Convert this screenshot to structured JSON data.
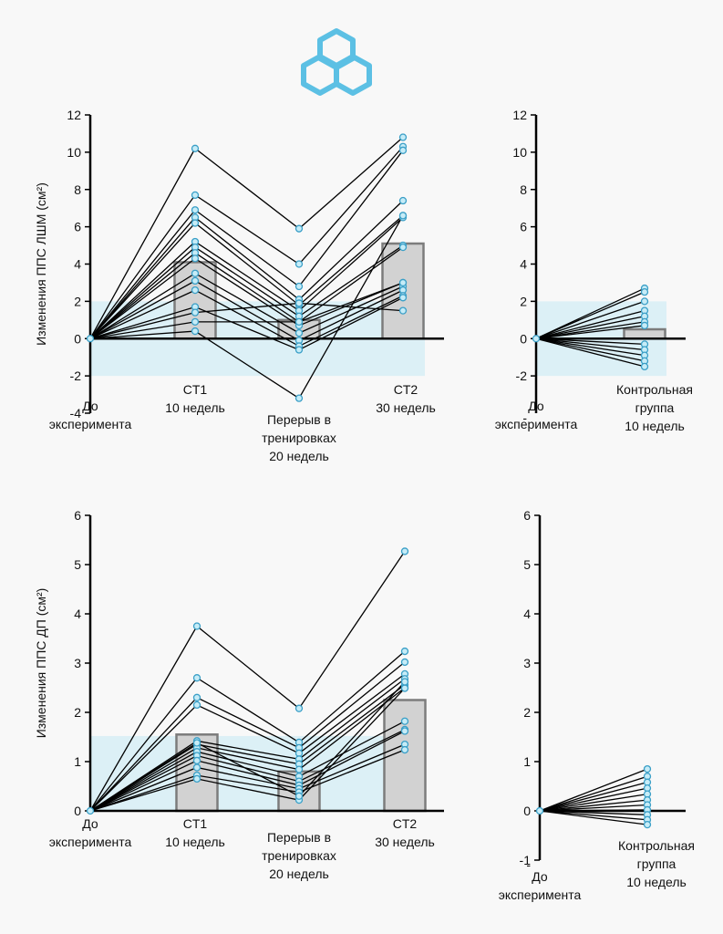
{
  "logo": {
    "name": "hexagon-cubes-logo",
    "color": "#5cc0e4"
  },
  "colors": {
    "band": "#dcf0f6",
    "bar_fill": "#d2d2d2",
    "bar_stroke": "#7c7c7c",
    "point_stroke": "#3a9fc7",
    "point_fill": "#c6ecf7",
    "line": "#000000"
  },
  "chart_data": [
    {
      "id": "lshm-exp",
      "type": "bar",
      "ylabel": "Изменения ППС ЛШМ  (см²)",
      "ylim": [
        -4,
        12
      ],
      "yticks": [
        -4,
        -2,
        0,
        2,
        4,
        6,
        8,
        10,
        12
      ],
      "band": [
        -2,
        2
      ],
      "categories": [
        "До\nэксперимента",
        "CT1\n10 недель",
        "Перерыв в\nтренировках\n20 недель",
        "CT2\n30 недель"
      ],
      "values": [
        0,
        4.1,
        1.0,
        5.1
      ],
      "series": [
        {
          "values": [
            0,
            10.2,
            5.9,
            10.8
          ]
        },
        {
          "values": [
            0,
            7.7,
            4.0,
            10.3
          ]
        },
        {
          "values": [
            0,
            6.9,
            2.8,
            10.1
          ]
        },
        {
          "values": [
            0,
            6.5,
            2.1,
            7.4
          ]
        },
        {
          "values": [
            0,
            6.2,
            1.8,
            6.6
          ]
        },
        {
          "values": [
            0,
            5.2,
            1.5,
            6.5
          ]
        },
        {
          "values": [
            0,
            4.9,
            1.2,
            5.0
          ]
        },
        {
          "values": [
            0,
            4.6,
            0.9,
            4.9
          ]
        },
        {
          "values": [
            0,
            4.3,
            0.7,
            3.0
          ]
        },
        {
          "values": [
            0,
            3.5,
            0.3,
            2.8
          ]
        },
        {
          "values": [
            0,
            3.1,
            -0.1,
            2.6
          ]
        },
        {
          "values": [
            0,
            2.6,
            -0.4,
            2.3
          ]
        },
        {
          "values": [
            0,
            1.7,
            -0.6,
            2.2
          ]
        },
        {
          "values": [
            0,
            1.4,
            1.9,
            1.5
          ]
        },
        {
          "values": [
            0,
            0.9,
            0.9,
            3.0
          ]
        },
        {
          "values": [
            0,
            0.4,
            -3.2,
            6.6
          ]
        }
      ]
    },
    {
      "id": "lshm-ctrl",
      "type": "bar",
      "ylabel": "",
      "ylim": [
        -4,
        12
      ],
      "yticks": [
        -2,
        0,
        2,
        4,
        6,
        8,
        10,
        12
      ],
      "bottom_tick_label": "-",
      "band": [
        -2,
        2
      ],
      "categories": [
        "До\nэксперимента",
        "Контрольная\nгруппа\n10 недель"
      ],
      "values": [
        0,
        0.5
      ],
      "series": [
        {
          "values": [
            0,
            2.7
          ]
        },
        {
          "values": [
            0,
            2.5
          ]
        },
        {
          "values": [
            0,
            2.0
          ]
        },
        {
          "values": [
            0,
            1.5
          ]
        },
        {
          "values": [
            0,
            1.2
          ]
        },
        {
          "values": [
            0,
            0.9
          ]
        },
        {
          "values": [
            0,
            0.7
          ]
        },
        {
          "values": [
            0,
            -0.3
          ]
        },
        {
          "values": [
            0,
            -0.6
          ]
        },
        {
          "values": [
            0,
            -0.9
          ]
        },
        {
          "values": [
            0,
            -1.2
          ]
        },
        {
          "values": [
            0,
            -1.5
          ]
        }
      ]
    },
    {
      "id": "dp-exp",
      "type": "bar",
      "ylabel": "Изменения ППС ДП  (см²)",
      "ylim": [
        0,
        6
      ],
      "yticks": [
        0,
        1,
        2,
        3,
        4,
        5,
        6
      ],
      "band": [
        0,
        1.52
      ],
      "categories": [
        "До\nэксперимента",
        "CT1\n10 недель",
        "Перерыв в\nтренировках\n20 недель",
        "CT2\n30 недель"
      ],
      "values": [
        0,
        1.55,
        0.8,
        2.25
      ],
      "series": [
        {
          "values": [
            0,
            3.75,
            2.08,
            5.27
          ]
        },
        {
          "values": [
            0,
            2.7,
            1.39,
            3.24
          ]
        },
        {
          "values": [
            0,
            2.3,
            1.28,
            3.02
          ]
        },
        {
          "values": [
            0,
            2.15,
            1.17,
            2.78
          ]
        },
        {
          "values": [
            0,
            1.42,
            1.05,
            2.68
          ]
        },
        {
          "values": [
            0,
            1.35,
            0.95,
            2.56
          ]
        },
        {
          "values": [
            0,
            1.28,
            0.84,
            2.5
          ]
        },
        {
          "values": [
            0,
            1.2,
            0.7,
            1.82
          ]
        },
        {
          "values": [
            0,
            1.12,
            0.6,
            1.65
          ]
        },
        {
          "values": [
            0,
            1.02,
            0.52,
            1.62
          ]
        },
        {
          "values": [
            0,
            0.88,
            0.45,
            1.35
          ]
        },
        {
          "values": [
            0,
            0.72,
            0.38,
            1.24
          ]
        },
        {
          "values": [
            0,
            0.65,
            0.22,
            2.49
          ]
        },
        {
          "values": [
            0,
            1.38,
            0.3,
            2.62
          ]
        }
      ]
    },
    {
      "id": "dp-ctrl",
      "type": "bar",
      "ylabel": "",
      "ylim": [
        -1,
        6
      ],
      "yticks": [
        -1,
        0,
        1,
        2,
        3,
        4,
        5,
        6
      ],
      "bottom_tick_label": "-",
      "band": null,
      "categories": [
        "До\nэксперимента",
        "Контрольная\nгруппа\n10 недель"
      ],
      "values": [
        0,
        0
      ],
      "series": [
        {
          "values": [
            0,
            0.85
          ]
        },
        {
          "values": [
            0,
            0.7
          ]
        },
        {
          "values": [
            0,
            0.58
          ]
        },
        {
          "values": [
            0,
            0.46
          ]
        },
        {
          "values": [
            0,
            0.34
          ]
        },
        {
          "values": [
            0,
            0.22
          ]
        },
        {
          "values": [
            0,
            0.12
          ]
        },
        {
          "values": [
            0,
            0.02
          ]
        },
        {
          "values": [
            0,
            -0.08
          ]
        },
        {
          "values": [
            0,
            -0.18
          ]
        },
        {
          "values": [
            0,
            -0.28
          ]
        }
      ]
    }
  ]
}
